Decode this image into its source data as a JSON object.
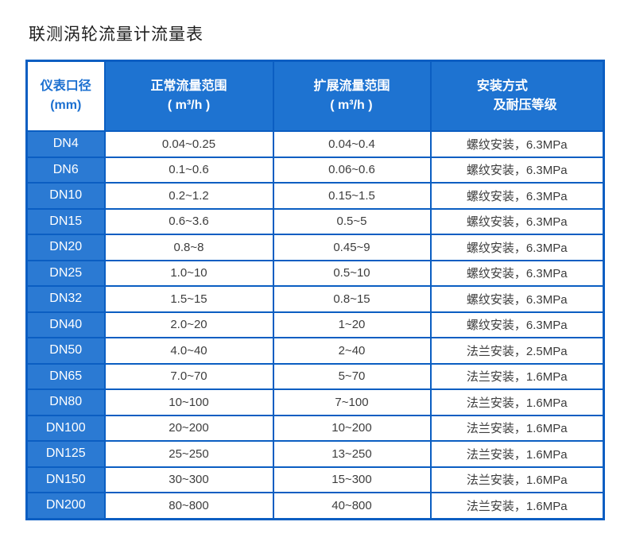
{
  "page": {
    "title": "联测涡轮流量计流量表"
  },
  "colors": {
    "table_border": "#0b5ec2",
    "header_background": "#1e73d1",
    "diameter_column_background": "#2b7ad3",
    "header_text": "#ffffff",
    "corner_header_text": "#1a6fd0",
    "body_text": "#3d3d3d",
    "title_text": "#1f1f1f"
  },
  "table": {
    "headers": [
      {
        "line1": "仪表口径",
        "line2": "(mm)"
      },
      {
        "line1": "正常流量范围",
        "line2": "( m³/h )"
      },
      {
        "line1": "扩展流量范围",
        "line2": "( m³/h )"
      },
      {
        "line1": "安装方式",
        "line2": "及耐压等级"
      }
    ]
  },
  "chart_data": {
    "type": "table",
    "title": "联测涡轮流量计流量表",
    "columns": [
      "仪表口径 (mm)",
      "正常流量范围 ( m³/h )",
      "扩展流量范围 ( m³/h )",
      "安装方式及耐压等级"
    ],
    "rows": [
      [
        "DN4",
        "0.04~0.25",
        "0.04~0.4",
        "螺纹安装，6.3MPa"
      ],
      [
        "DN6",
        "0.1~0.6",
        "0.06~0.6",
        "螺纹安装，6.3MPa"
      ],
      [
        "DN10",
        "0.2~1.2",
        "0.15~1.5",
        "螺纹安装，6.3MPa"
      ],
      [
        "DN15",
        "0.6~3.6",
        "0.5~5",
        "螺纹安装，6.3MPa"
      ],
      [
        "DN20",
        "0.8~8",
        "0.45~9",
        "螺纹安装，6.3MPa"
      ],
      [
        "DN25",
        "1.0~10",
        "0.5~10",
        "螺纹安装，6.3MPa"
      ],
      [
        "DN32",
        "1.5~15",
        "0.8~15",
        "螺纹安装，6.3MPa"
      ],
      [
        "DN40",
        "2.0~20",
        "1~20",
        "螺纹安装，6.3MPa"
      ],
      [
        "DN50",
        "4.0~40",
        "2~40",
        "法兰安装，2.5MPa"
      ],
      [
        "DN65",
        "7.0~70",
        "5~70",
        "法兰安装，1.6MPa"
      ],
      [
        "DN80",
        "10~100",
        "7~100",
        "法兰安装，1.6MPa"
      ],
      [
        "DN100",
        "20~200",
        "10~200",
        "法兰安装，1.6MPa"
      ],
      [
        "DN125",
        "25~250",
        "13~250",
        "法兰安装，1.6MPa"
      ],
      [
        "DN150",
        "30~300",
        "15~300",
        "法兰安装，1.6MPa"
      ],
      [
        "DN200",
        "80~800",
        "40~800",
        "法兰安装，1.6MPa"
      ]
    ]
  }
}
